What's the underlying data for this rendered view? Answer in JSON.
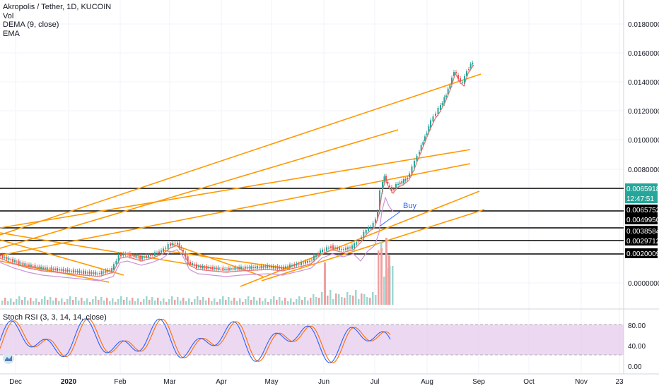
{
  "legend": {
    "title": "Akropolis / Tether, 1D, KUCOIN",
    "vol": "Vol",
    "dema": "DEMA (9, close)",
    "ema": "EMA"
  },
  "price_axis": {
    "ticks": [
      "0.0180000",
      "0.0160000",
      "0.0140000",
      "0.0120000",
      "0.0100000",
      "0.0080000",
      "0.0000000"
    ],
    "labels": [
      {
        "text": "0.0065918",
        "bg": "#26a69a",
        "fg": "#ffffff"
      },
      {
        "text": "12:47:51",
        "bg": "#26a69a",
        "fg": "#ffffff"
      },
      {
        "text": "0.0065752",
        "bg": "#000000",
        "fg": "#ffffff"
      },
      {
        "text": "0.0049950",
        "bg": "#000000",
        "fg": "#ffffff"
      },
      {
        "text": "0.0038584",
        "bg": "#000000",
        "fg": "#ffffff"
      },
      {
        "text": "0.0029712",
        "bg": "#000000",
        "fg": "#ffffff"
      },
      {
        "text": "0.0020009",
        "bg": "#000000",
        "fg": "#ffffff"
      }
    ]
  },
  "annotation_buy": "Buy",
  "rsi": {
    "title": "Stoch RSI (3, 3, 14, 14, close)",
    "ticks": [
      "80.00",
      "40.00",
      "0.00"
    ]
  },
  "time_axis": [
    "Dec",
    "2020",
    "Feb",
    "Mar",
    "Apr",
    "May",
    "Jun",
    "Jul",
    "Aug",
    "Sep",
    "Oct",
    "Nov",
    "23"
  ],
  "colors": {
    "up": "#26a69a",
    "down": "#ef5350",
    "trendline": "#ff9800",
    "rsi_k": "#2962ff",
    "rsi_d": "#ff6d00",
    "rsi_band": "#e1bee7"
  }
}
